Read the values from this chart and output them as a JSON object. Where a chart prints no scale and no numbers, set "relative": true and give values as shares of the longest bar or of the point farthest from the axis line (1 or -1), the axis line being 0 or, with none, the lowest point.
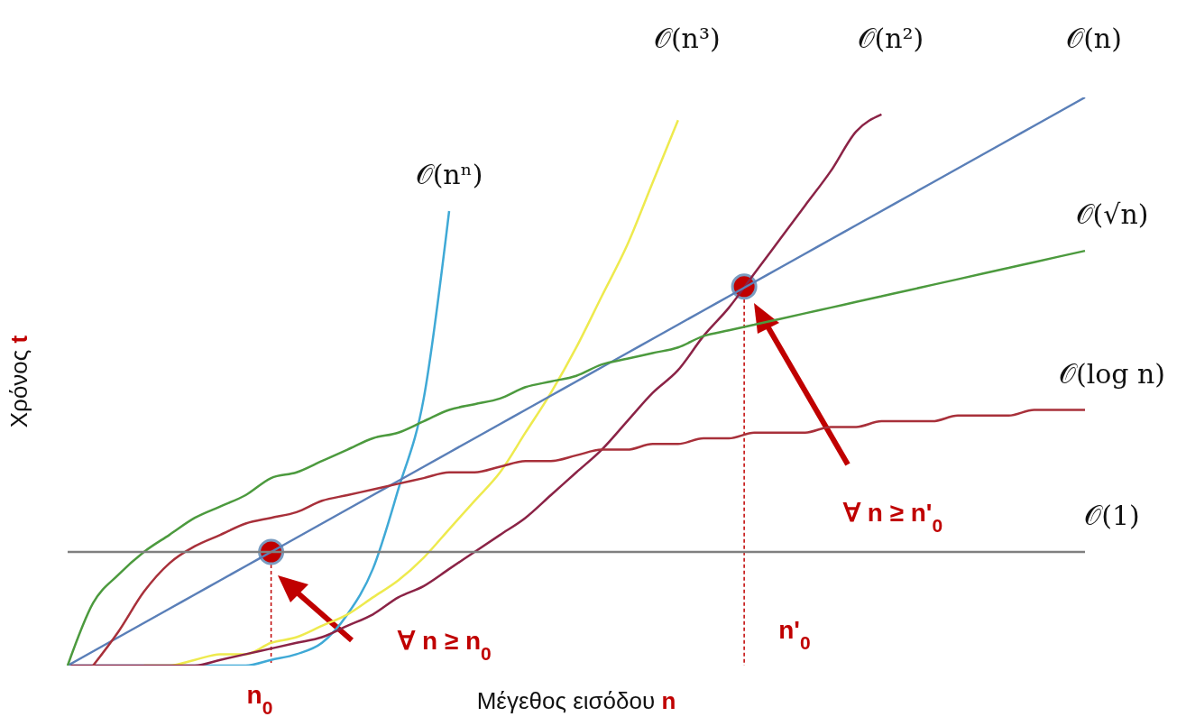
{
  "chart_data": {
    "type": "line",
    "relative": true,
    "xlabel": "Μέγεθος εισόδου n",
    "ylabel": "Χρόνος t",
    "categories": [
      null,
      null,
      null,
      null,
      null,
      null,
      null,
      null,
      null,
      null,
      null,
      null,
      null,
      null,
      null,
      null,
      null,
      null,
      null,
      null,
      null,
      null,
      null,
      null,
      null,
      null,
      null,
      null,
      null,
      null,
      null,
      null,
      null,
      null,
      null,
      null,
      null,
      null,
      null,
      null,
      null
    ],
    "series": [
      {
        "name": "𝒪(nⁿ)",
        "color": "#3fa9d6",
        "values": [
          0,
          0,
          0,
          0,
          0,
          0,
          0,
          0,
          0.01,
          0.02,
          0.04,
          0.09,
          0.17,
          0.31,
          0.47,
          0.8,
          null,
          null,
          null,
          null,
          null,
          null,
          null,
          null,
          null,
          null,
          null,
          null,
          null,
          null,
          null,
          null,
          null,
          null,
          null,
          null,
          null,
          null,
          null,
          null,
          null
        ]
      },
      {
        "name": "𝒪(n³)",
        "color": "#eeea4e",
        "values": [
          null,
          null,
          null,
          0,
          0,
          0.01,
          0.02,
          0.02,
          0.04,
          0.05,
          0.07,
          0.09,
          0.12,
          0.15,
          0.19,
          0.24,
          0.29,
          0.34,
          0.41,
          0.48,
          0.56,
          0.65,
          0.74,
          0.85,
          0.96,
          null,
          null,
          null,
          null,
          null,
          null,
          null,
          null,
          null,
          null,
          null,
          null,
          null,
          null,
          null,
          null
        ]
      },
      {
        "name": "𝒪(n²)",
        "color": "#8b2346",
        "values": [
          0,
          0,
          0,
          0,
          0,
          0,
          0.01,
          0.02,
          0.03,
          0.04,
          0.05,
          0.07,
          0.09,
          0.12,
          0.14,
          0.17,
          0.2,
          0.23,
          0.26,
          0.3,
          0.34,
          0.38,
          0.43,
          0.48,
          0.52,
          0.58,
          0.63,
          0.69,
          0.75,
          0.81,
          0.87,
          0.94,
          0.97,
          null,
          null,
          null,
          null,
          null,
          null,
          null,
          null
        ]
      },
      {
        "name": "𝒪(n)",
        "color": "#5a7fb8",
        "values": [
          0,
          0.025,
          0.05,
          0.075,
          0.1,
          0.125,
          0.15,
          0.175,
          0.2,
          0.225,
          0.25,
          0.275,
          0.3,
          0.325,
          0.35,
          0.375,
          0.4,
          0.425,
          0.45,
          0.475,
          0.5,
          0.525,
          0.55,
          0.575,
          0.6,
          0.625,
          0.65,
          0.675,
          0.7,
          0.725,
          0.75,
          0.775,
          0.8,
          0.825,
          0.85,
          0.875,
          0.9,
          0.925,
          0.95,
          0.975,
          1
        ]
      },
      {
        "name": "𝒪(√n)",
        "color": "#4c9a3e",
        "values": [
          0,
          0.11,
          0.16,
          0.2,
          0.23,
          0.26,
          0.28,
          0.3,
          0.33,
          0.34,
          0.36,
          0.38,
          0.4,
          0.41,
          0.43,
          0.45,
          0.46,
          0.47,
          0.49,
          0.5,
          0.51,
          0.53,
          0.54,
          0.55,
          0.56,
          0.58,
          0.59,
          0.6,
          0.61,
          0.62,
          0.63,
          0.64,
          0.65,
          0.66,
          0.67,
          0.68,
          0.69,
          0.7,
          0.71,
          0.72,
          0.73
        ]
      },
      {
        "name": "𝒪(log n)",
        "color": "#a8303a",
        "values": [
          null,
          0,
          0.06,
          0.13,
          0.18,
          0.21,
          0.23,
          0.25,
          0.26,
          0.27,
          0.29,
          0.3,
          0.31,
          0.32,
          0.33,
          0.34,
          0.34,
          0.35,
          0.36,
          0.36,
          0.37,
          0.38,
          0.38,
          0.39,
          0.39,
          0.4,
          0.4,
          0.41,
          0.41,
          0.41,
          0.42,
          0.42,
          0.43,
          0.43,
          0.43,
          0.44,
          0.44,
          0.44,
          0.45,
          0.45,
          0.45
        ]
      },
      {
        "name": "𝒪(1)",
        "color": "#808080",
        "values": [
          0.2,
          0.2,
          0.2,
          0.2,
          0.2,
          0.2,
          0.2,
          0.2,
          0.2,
          0.2,
          0.2,
          0.2,
          0.2,
          0.2,
          0.2,
          0.2,
          0.2,
          0.2,
          0.2,
          0.2,
          0.2,
          0.2,
          0.2,
          0.2,
          0.2,
          0.2,
          0.2,
          0.2,
          0.2,
          0.2,
          0.2,
          0.2,
          0.2,
          0.2,
          0.2,
          0.2,
          0.2,
          0.2,
          0.2,
          0.2,
          0.2
        ]
      }
    ],
    "annotations": [
      "n$_{0}$",
      "∀ n ≥ n$_{0}$",
      "n'$_{0}$",
      "∀ n ≥ n'$_{0}$"
    ]
  }
}
